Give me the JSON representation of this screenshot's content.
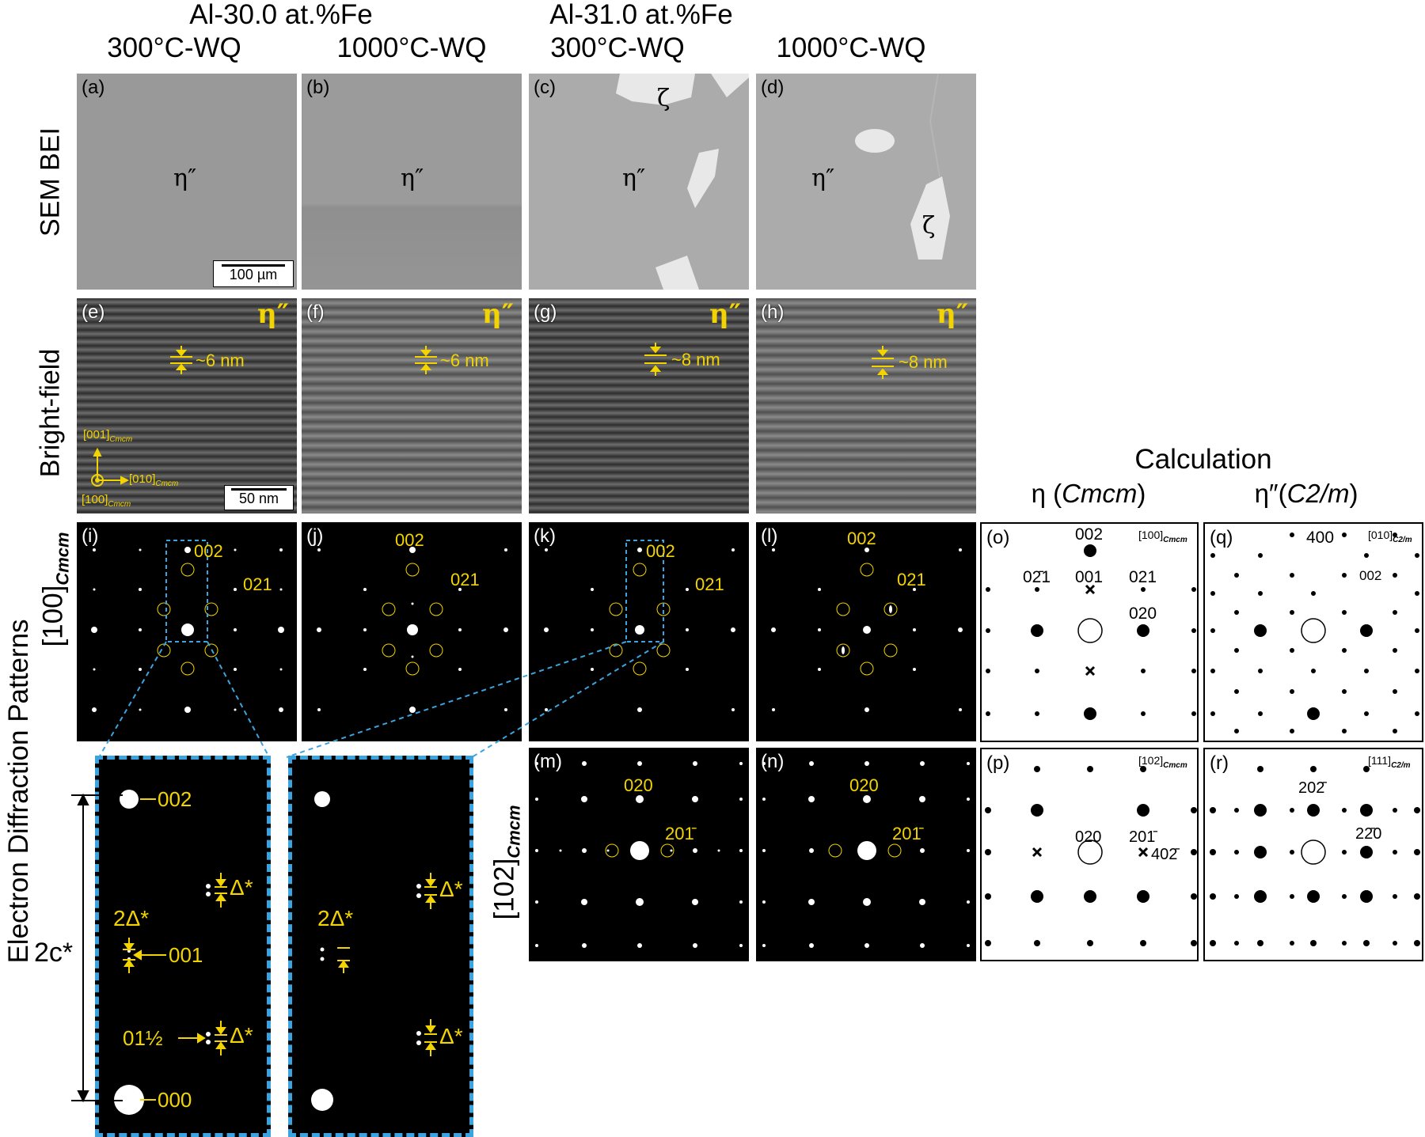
{
  "columns": {
    "group1": "Al-30.0 at.%Fe",
    "group2": "Al-31.0 at.%Fe",
    "col_a": "300°C-WQ",
    "col_b": "1000°C-WQ",
    "col_c": "300°C-WQ",
    "col_d": "1000°C-WQ",
    "calculation": "Calculation",
    "calc_eta": "η (Cmcm)",
    "calc_eta2": "η″(C2/m)"
  },
  "row_labels": {
    "sem": "SEM BEI",
    "bf": "Bright-field",
    "edp": "Electron Diffraction Patterns",
    "edp_axis": "[100]",
    "edp_axis_sub": "Cmcm",
    "axis_102": "[102]",
    "axis_102_sub": "Cmcm"
  },
  "panels": {
    "a": "(a)",
    "b": "(b)",
    "c": "(c)",
    "d": "(d)",
    "e": "(e)",
    "f": "(f)",
    "g": "(g)",
    "h": "(h)",
    "i": "(i)",
    "j": "(j)",
    "k": "(k)",
    "l": "(l)",
    "m": "(m)",
    "n": "(n)",
    "o": "(o)",
    "p": "(p)",
    "q": "(q)",
    "r": "(r)"
  },
  "sem": {
    "phase_eta": "η″",
    "phase_zeta": "ζ",
    "scale": "100 µm"
  },
  "bf": {
    "phase": "η″",
    "spacing_e": "~6 nm",
    "spacing_f": "~6 nm",
    "spacing_g": "~8 nm",
    "spacing_h": "~8 nm",
    "scale": "50 nm",
    "dir_001": "[001]",
    "dir_010": "[010]",
    "dir_100": "[100]",
    "dir_sub": "Cmcm"
  },
  "edp": {
    "r002": "002",
    "r021": "021",
    "r020": "020",
    "r20m1": "201̄"
  },
  "zoom": {
    "r002": "002",
    "r000": "000",
    "r001": "001",
    "r01half": "01½",
    "two_delta": "2Δ*",
    "delta": "Δ*",
    "twoc": "2c*"
  },
  "calc": {
    "o_axis": "[100]",
    "o_sub": "Cmcm",
    "o_002": "002",
    "o_0m21": "02̄1",
    "o_001": "001",
    "o_021": "021",
    "o_020": "020",
    "q_axis": "[010]",
    "q_sub": "C2/m",
    "q_400": "400",
    "q_002": "002",
    "p_axis": "[102]",
    "p_sub": "Cmcm",
    "p_020": "020",
    "p_20m1": "201̄",
    "p_40m2": "402̄",
    "r_axis": "[111]",
    "r_sub": "C2/m",
    "r_20m2": "202̄",
    "r_2m20": "22̄0"
  }
}
